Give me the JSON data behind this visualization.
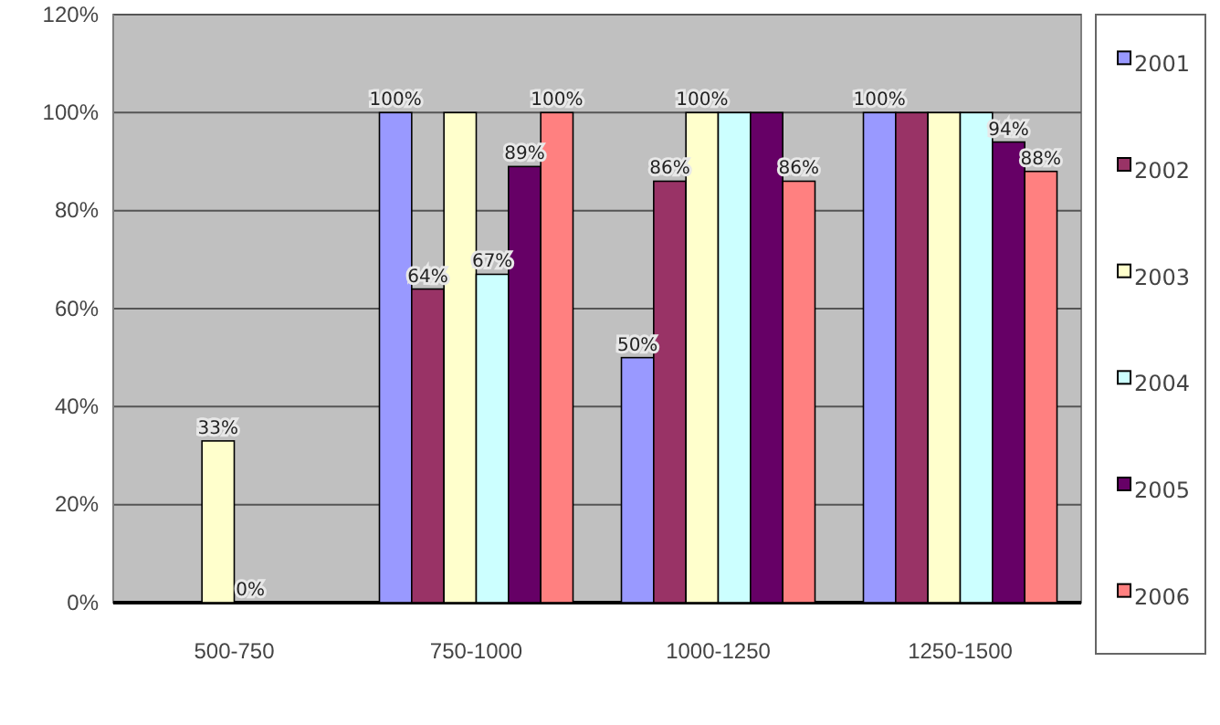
{
  "chart_data": {
    "type": "bar",
    "categories": [
      "500-750",
      "750-1000",
      "1000-1250",
      "1250-1500"
    ],
    "series": [
      {
        "name": "2001",
        "color": "#9999ff",
        "values": [
          null,
          100,
          50,
          100
        ],
        "value_labels": [
          null,
          "100%",
          "50%",
          "100%"
        ]
      },
      {
        "name": "2002",
        "color": "#993366",
        "values": [
          null,
          64,
          86,
          100
        ],
        "value_labels": [
          null,
          "64%",
          "86%",
          null
        ]
      },
      {
        "name": "2003",
        "color": "#ffffcc",
        "values": [
          33,
          100,
          100,
          100
        ],
        "value_labels": [
          "33%",
          null,
          "100%",
          null
        ]
      },
      {
        "name": "2004",
        "color": "#ccffff",
        "values": [
          0,
          67,
          100,
          100
        ],
        "value_labels": [
          "0%",
          "67%",
          null,
          null
        ]
      },
      {
        "name": "2005",
        "color": "#660066",
        "values": [
          null,
          89,
          100,
          94
        ],
        "value_labels": [
          null,
          "89%",
          null,
          "94%"
        ]
      },
      {
        "name": "2006",
        "color": "#ff8080",
        "values": [
          null,
          100,
          86,
          88
        ],
        "value_labels": [
          null,
          "100%",
          "86%",
          "88%"
        ]
      }
    ],
    "ylim": [
      0,
      120
    ],
    "yticks": [
      {
        "value": 0,
        "label": "0%"
      },
      {
        "value": 20,
        "label": "20%"
      },
      {
        "value": 40,
        "label": "40%"
      },
      {
        "value": 60,
        "label": "60%"
      },
      {
        "value": 80,
        "label": "80%"
      },
      {
        "value": 100,
        "label": "100%"
      },
      {
        "value": 120,
        "label": "120%"
      }
    ],
    "grid": "y",
    "legend": "right"
  }
}
